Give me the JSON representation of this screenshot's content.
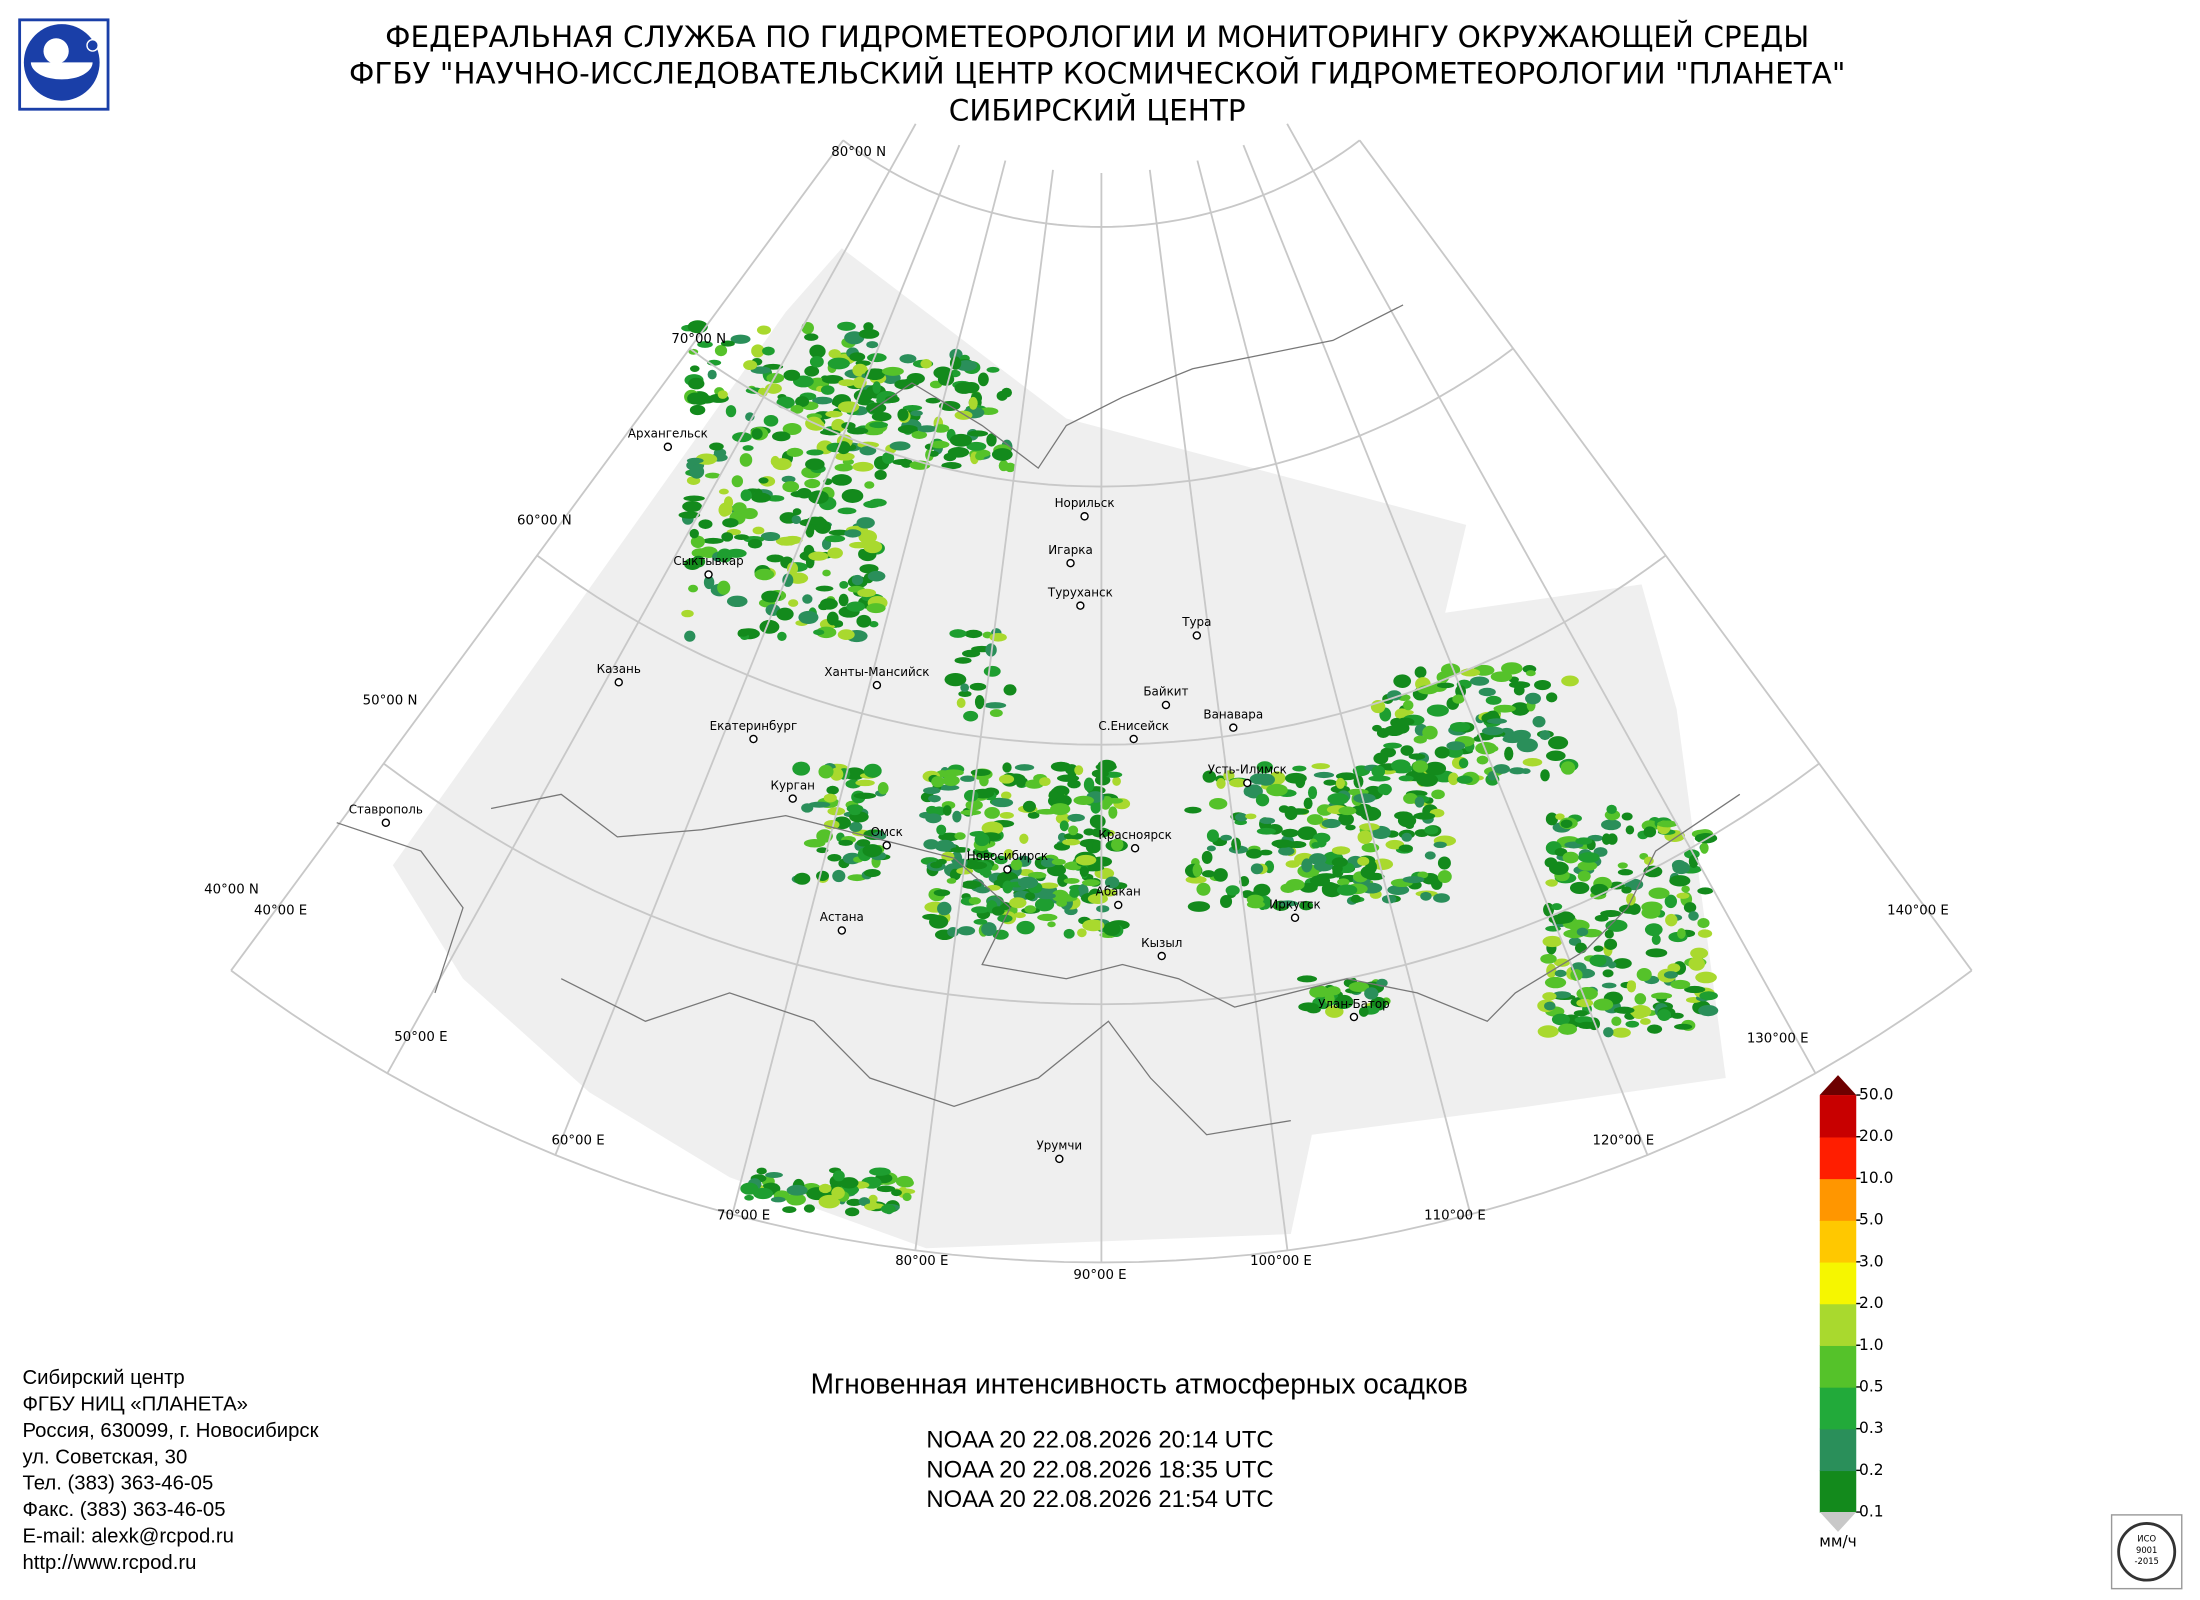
{
  "header": {
    "lines": [
      "ФЕДЕРАЛЬНАЯ СЛУЖБА ПО ГИДРОМЕТЕОРОЛОГИИ И МОНИТОРИНГУ ОКРУЖАЮЩЕЙ СРЕДЫ",
      "ФГБУ \"НАУЧНО-ИССЛЕДОВАТЕЛЬСКИЙ ЦЕНТР КОСМИЧЕСКОЙ ГИДРОМЕТЕОРОЛОГИИ \"ПЛАНЕТА\"",
      "СИБИРСКИЙ ЦЕНТР"
    ]
  },
  "map": {
    "lat_labels": [
      "80°00 N",
      "70°00 N",
      "60°00 N",
      "50°00 N",
      "40°00 N"
    ],
    "lon_labels": [
      "40°00 E",
      "50°00 E",
      "60°00 E",
      "70°00 E",
      "80°00 E",
      "90°00 E",
      "100°00 E",
      "110°00 E",
      "120°00 E",
      "130°00 E",
      "140°00 E"
    ],
    "cities": [
      "Архангельск",
      "Сыктывкар",
      "Казань",
      "Екатеринбург",
      "Курган",
      "Ставрополь",
      "Ханты-Мансийск",
      "Омск",
      "Астана",
      "Новосибирск",
      "Норильск",
      "Игарка",
      "Туруханск",
      "Тура",
      "Байкит",
      "Ванавара",
      "С.Енисейск",
      "Усть-Илимск",
      "Красноярск",
      "Абакан",
      "Кызыл",
      "Иркутск",
      "Улан-Батор",
      "Урумчи"
    ]
  },
  "legend": {
    "levels": [
      "0.1",
      "0.2",
      "0.3",
      "0.5",
      "1.0",
      "2.0",
      "3.0",
      "5.0",
      "10.0",
      "20.0",
      "50.0"
    ],
    "colors": [
      "#138a1c",
      "#2a8f5a",
      "#22aa3a",
      "#55c22a",
      "#a9d92e",
      "#f6f600",
      "#ffc800",
      "#ff9600",
      "#ff1e00",
      "#c80000"
    ],
    "over_color": "#6e0000",
    "under_color": "#c8c8c8",
    "unit": "мм/ч"
  },
  "product": {
    "title": "Мгновенная интенсивность атмосферных осадков",
    "passes": [
      "NOAA 20 22.08.2026  20:14 UTC",
      "NOAA 20 22.08.2026  18:35 UTC",
      "NOAA 20 22.08.2026  21:54 UTC"
    ]
  },
  "contacts": [
    "Сибирский центр",
    "ФГБУ НИЦ «ПЛАНЕТА»",
    "Россия, 630099, г. Новосибирск",
    "ул. Советская, 30",
    "Тел. (383) 363-46-05",
    "Факс. (383) 363-46-05",
    "E-mail: alexk@rcpod.ru",
    "http://www.rcpod.ru"
  ],
  "iso_stamp": [
    "ИСО",
    "9001",
    "-2015"
  ]
}
